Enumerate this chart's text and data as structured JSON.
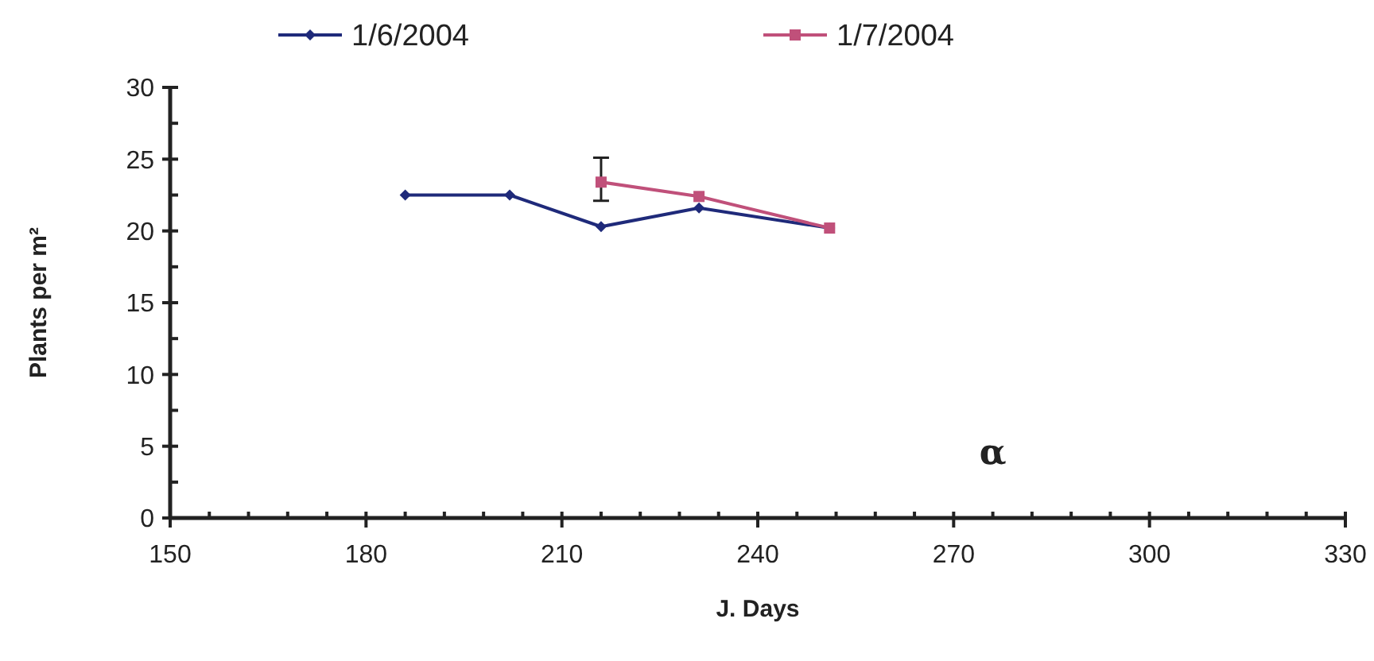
{
  "chart_data": {
    "type": "line",
    "xlabel": "J. Days",
    "ylabel": "Plants per m²",
    "xlim": [
      150,
      330
    ],
    "ylim": [
      0,
      30
    ],
    "xticks": [
      150,
      {
        "value": 156,
        "label": null
      },
      {
        "value": 162,
        "label": null
      },
      {
        "value": 168,
        "label": null
      },
      {
        "value": 174,
        "label": null
      },
      180,
      {
        "value": 186,
        "label": null
      },
      {
        "value": 192,
        "label": null
      },
      {
        "value": 198,
        "label": null
      },
      {
        "value": 204,
        "label": null
      },
      210,
      {
        "value": 216,
        "label": null
      },
      {
        "value": 222,
        "label": null
      },
      {
        "value": 228,
        "label": null
      },
      {
        "value": 234,
        "label": null
      },
      240,
      {
        "value": 246,
        "label": null
      },
      {
        "value": 252,
        "label": null
      },
      {
        "value": 258,
        "label": null
      },
      {
        "value": 264,
        "label": null
      },
      270,
      {
        "value": 276,
        "label": null
      },
      {
        "value": 282,
        "label": null
      },
      {
        "value": 288,
        "label": null
      },
      {
        "value": 294,
        "label": null
      },
      300,
      {
        "value": 306,
        "label": null
      },
      {
        "value": 312,
        "label": null
      },
      {
        "value": 318,
        "label": null
      },
      {
        "value": 324,
        "label": null
      },
      330
    ],
    "yticks": [
      0,
      {
        "value": 2.5,
        "label": null
      },
      5,
      {
        "value": 7.5,
        "label": null
      },
      10,
      {
        "value": 12.5,
        "label": null
      },
      15,
      {
        "value": 17.5,
        "label": null
      },
      20,
      {
        "value": 22.5,
        "label": null
      },
      25,
      {
        "value": 27.5,
        "label": null
      },
      30
    ],
    "legend": "top",
    "grid": false,
    "annotations": [
      "α"
    ],
    "series": [
      {
        "name": "1/6/2004",
        "color": "#1f2a7a",
        "marker": "diamond",
        "x": [
          186,
          202,
          216,
          231,
          251
        ],
        "values": [
          22.5,
          22.5,
          20.3,
          21.6,
          20.2
        ]
      },
      {
        "name": "1/7/2004",
        "color": "#c0507a",
        "marker": "square",
        "x": [
          216,
          231,
          251
        ],
        "values": [
          23.4,
          22.4,
          20.2
        ],
        "errors": [
          [
            22.1,
            25.1
          ],
          null,
          null
        ]
      }
    ]
  }
}
